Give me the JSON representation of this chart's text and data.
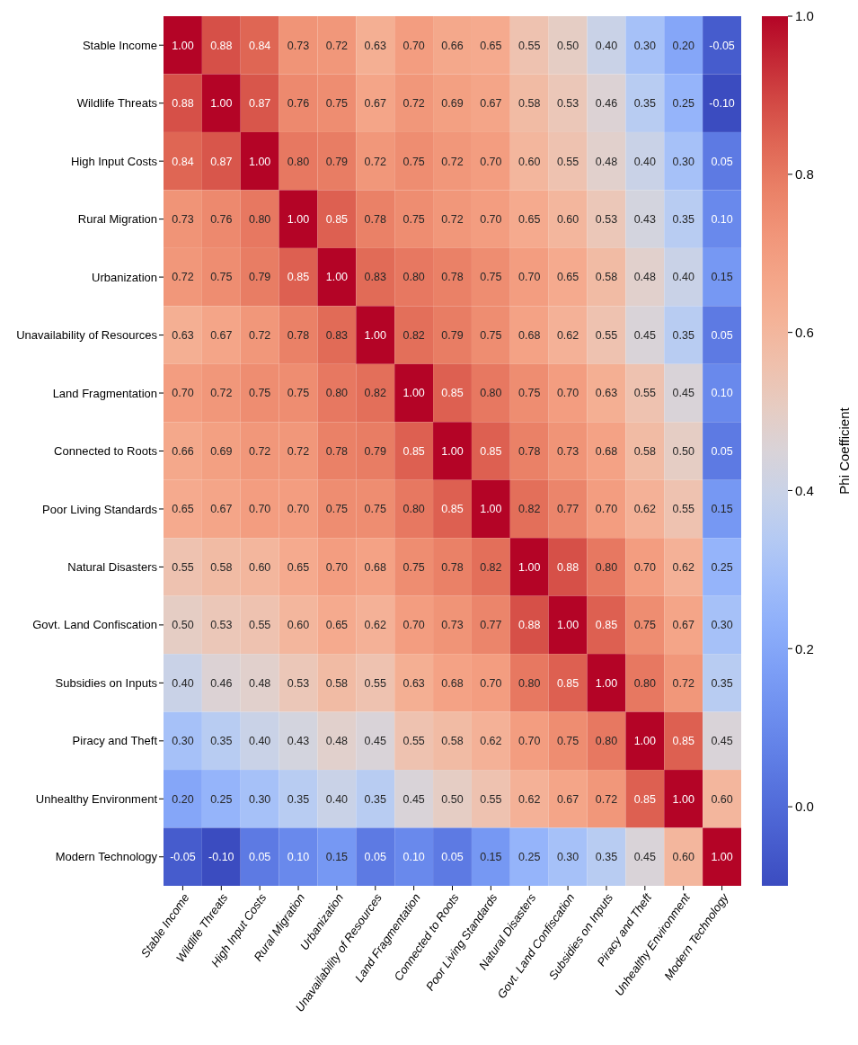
{
  "chart_data": {
    "type": "heatmap",
    "clabel": "Phi Coefficient",
    "categories": [
      "Stable Income",
      "Wildlife Threats",
      "High Input Costs",
      "Rural Migration",
      "Urbanization",
      "Unavailability of Resources",
      "Land Fragmentation",
      "Connected to Roots",
      "Poor Living Standards",
      "Natural Disasters",
      "Govt. Land Confiscation",
      "Subsidies on Inputs",
      "Piracy and Theft",
      "Unhealthy Environment",
      "Modern Technology"
    ],
    "y_categories": [
      "Stable Income",
      "Wildlife Threats",
      "High Input Costs",
      "Rural Migration",
      "Urbanization",
      "Unavailability of Resources",
      "Land Fragmentation",
      "Connected to Roots",
      "Poor Living Standards",
      "Natural Disasters",
      "Govt. Land Confiscation",
      "Subsidies on Inputs",
      "Piracy and Theft",
      "Unhealthy Environment",
      "Modern Technology"
    ],
    "cells": [
      [
        1.0,
        0.88,
        0.84,
        0.73,
        0.72,
        0.63,
        0.7,
        0.66,
        0.65,
        0.55,
        0.5,
        0.4,
        0.3,
        0.2,
        -0.05
      ],
      [
        0.88,
        1.0,
        0.87,
        0.76,
        0.75,
        0.67,
        0.72,
        0.69,
        0.67,
        0.58,
        0.53,
        0.46,
        0.35,
        0.25,
        -0.1
      ],
      [
        0.84,
        0.87,
        1.0,
        0.8,
        0.79,
        0.72,
        0.75,
        0.72,
        0.7,
        0.6,
        0.55,
        0.48,
        0.4,
        0.3,
        0.05
      ],
      [
        0.73,
        0.76,
        0.8,
        1.0,
        0.85,
        0.78,
        0.75,
        0.72,
        0.7,
        0.65,
        0.6,
        0.53,
        0.43,
        0.35,
        0.1
      ],
      [
        0.72,
        0.75,
        0.79,
        0.85,
        1.0,
        0.83,
        0.8,
        0.78,
        0.75,
        0.7,
        0.65,
        0.58,
        0.48,
        0.4,
        0.15
      ],
      [
        0.63,
        0.67,
        0.72,
        0.78,
        0.83,
        1.0,
        0.82,
        0.79,
        0.75,
        0.68,
        0.62,
        0.55,
        0.45,
        0.35,
        0.05
      ],
      [
        0.7,
        0.72,
        0.75,
        0.75,
        0.8,
        0.82,
        1.0,
        0.85,
        0.8,
        0.75,
        0.7,
        0.63,
        0.55,
        0.45,
        0.1
      ],
      [
        0.66,
        0.69,
        0.72,
        0.72,
        0.78,
        0.79,
        0.85,
        1.0,
        0.85,
        0.78,
        0.73,
        0.68,
        0.58,
        0.5,
        0.05
      ],
      [
        0.65,
        0.67,
        0.7,
        0.7,
        0.75,
        0.75,
        0.8,
        0.85,
        1.0,
        0.82,
        0.77,
        0.7,
        0.62,
        0.55,
        0.15
      ],
      [
        0.55,
        0.58,
        0.6,
        0.65,
        0.7,
        0.68,
        0.75,
        0.78,
        0.82,
        1.0,
        0.88,
        0.8,
        0.7,
        0.62,
        0.25
      ],
      [
        0.5,
        0.53,
        0.55,
        0.6,
        0.65,
        0.62,
        0.7,
        0.73,
        0.77,
        0.88,
        1.0,
        0.85,
        0.75,
        0.67,
        0.3
      ],
      [
        0.4,
        0.46,
        0.48,
        0.53,
        0.58,
        0.55,
        0.63,
        0.68,
        0.7,
        0.8,
        0.85,
        1.0,
        0.8,
        0.72,
        0.35
      ],
      [
        0.3,
        0.35,
        0.4,
        0.43,
        0.48,
        0.45,
        0.55,
        0.58,
        0.62,
        0.7,
        0.75,
        0.8,
        1.0,
        0.85,
        0.45
      ],
      [
        0.2,
        0.25,
        0.3,
        0.35,
        0.4,
        0.35,
        0.45,
        0.5,
        0.55,
        0.62,
        0.67,
        0.72,
        0.85,
        1.0,
        0.6
      ],
      [
        -0.05,
        -0.1,
        0.05,
        0.1,
        0.15,
        0.05,
        0.1,
        0.05,
        0.15,
        0.25,
        0.3,
        0.35,
        0.45,
        0.6,
        1.0
      ]
    ],
    "cell_labels": [
      [
        "1.00",
        "0.88",
        "0.84",
        "0.73",
        "0.72",
        "0.63",
        "0.70",
        "0.66",
        "0.65",
        "0.55",
        "0.50",
        "0.40",
        "0.30",
        "0.20",
        "-0.05"
      ],
      [
        "0.88",
        "1.00",
        "0.87",
        "0.76",
        "0.75",
        "0.67",
        "0.72",
        "0.69",
        "0.67",
        "0.58",
        "0.53",
        "0.46",
        "0.35",
        "0.25",
        "-0.10"
      ],
      [
        "0.84",
        "0.87",
        "1.00",
        "0.80",
        "0.79",
        "0.72",
        "0.75",
        "0.72",
        "0.70",
        "0.60",
        "0.55",
        "0.48",
        "0.40",
        "0.30",
        "0.05"
      ],
      [
        "0.73",
        "0.76",
        "0.80",
        "1.00",
        "0.85",
        "0.78",
        "0.75",
        "0.72",
        "0.70",
        "0.65",
        "0.60",
        "0.53",
        "0.43",
        "0.35",
        "0.10"
      ],
      [
        "0.72",
        "0.75",
        "0.79",
        "0.85",
        "1.00",
        "0.83",
        "0.80",
        "0.78",
        "0.75",
        "0.70",
        "0.65",
        "0.58",
        "0.48",
        "0.40",
        "0.15"
      ],
      [
        "0.63",
        "0.67",
        "0.72",
        "0.78",
        "0.83",
        "1.00",
        "0.82",
        "0.79",
        "0.75",
        "0.68",
        "0.62",
        "0.55",
        "0.45",
        "0.35",
        "0.05"
      ],
      [
        "0.70",
        "0.72",
        "0.75",
        "0.75",
        "0.80",
        "0.82",
        "1.00",
        "0.85",
        "0.80",
        "0.75",
        "0.70",
        "0.63",
        "0.55",
        "0.45",
        "0.10"
      ],
      [
        "0.66",
        "0.69",
        "0.72",
        "0.72",
        "0.78",
        "0.79",
        "0.85",
        "1.00",
        "0.85",
        "0.78",
        "0.73",
        "0.68",
        "0.58",
        "0.50",
        "0.05"
      ],
      [
        "0.65",
        "0.67",
        "0.70",
        "0.70",
        "0.75",
        "0.75",
        "0.80",
        "0.85",
        "1.00",
        "0.82",
        "0.77",
        "0.70",
        "0.62",
        "0.55",
        "0.15"
      ],
      [
        "0.55",
        "0.58",
        "0.60",
        "0.65",
        "0.70",
        "0.68",
        "0.75",
        "0.78",
        "0.82",
        "1.00",
        "0.88",
        "0.80",
        "0.70",
        "0.62",
        "0.25"
      ],
      [
        "0.50",
        "0.53",
        "0.55",
        "0.60",
        "0.65",
        "0.62",
        "0.70",
        "0.73",
        "0.77",
        "0.88",
        "1.00",
        "0.85",
        "0.75",
        "0.67",
        "0.30"
      ],
      [
        "0.40",
        "0.46",
        "0.48",
        "0.53",
        "0.58",
        "0.55",
        "0.63",
        "0.68",
        "0.70",
        "0.80",
        "0.85",
        "1.00",
        "0.80",
        "0.72",
        "0.35"
      ],
      [
        "0.30",
        "0.35",
        "0.40",
        "0.43",
        "0.48",
        "0.45",
        "0.55",
        "0.58",
        "0.62",
        "0.70",
        "0.75",
        "0.80",
        "1.00",
        "0.85",
        "0.45"
      ],
      [
        "0.20",
        "0.25",
        "0.30",
        "0.35",
        "0.40",
        "0.35",
        "0.45",
        "0.50",
        "0.55",
        "0.62",
        "0.67",
        "0.72",
        "0.85",
        "1.00",
        "0.60"
      ],
      [
        "-0.05",
        "-0.10",
        "0.05",
        "0.10",
        "0.15",
        "0.05",
        "0.10",
        "0.05",
        "0.15",
        "0.25",
        "0.30",
        "0.35",
        "0.45",
        "0.60",
        "1.00"
      ]
    ],
    "clim": [
      -0.1,
      1.0
    ],
    "cticks": [
      {
        "value": 0,
        "label": "0.0"
      },
      {
        "value": 0.2,
        "label": "0.2"
      },
      {
        "value": 0.4,
        "label": "0.4"
      },
      {
        "value": 0.6,
        "label": "0.6"
      },
      {
        "value": 0.8,
        "label": "0.8"
      },
      {
        "value": 1,
        "label": "1.0"
      }
    ]
  }
}
